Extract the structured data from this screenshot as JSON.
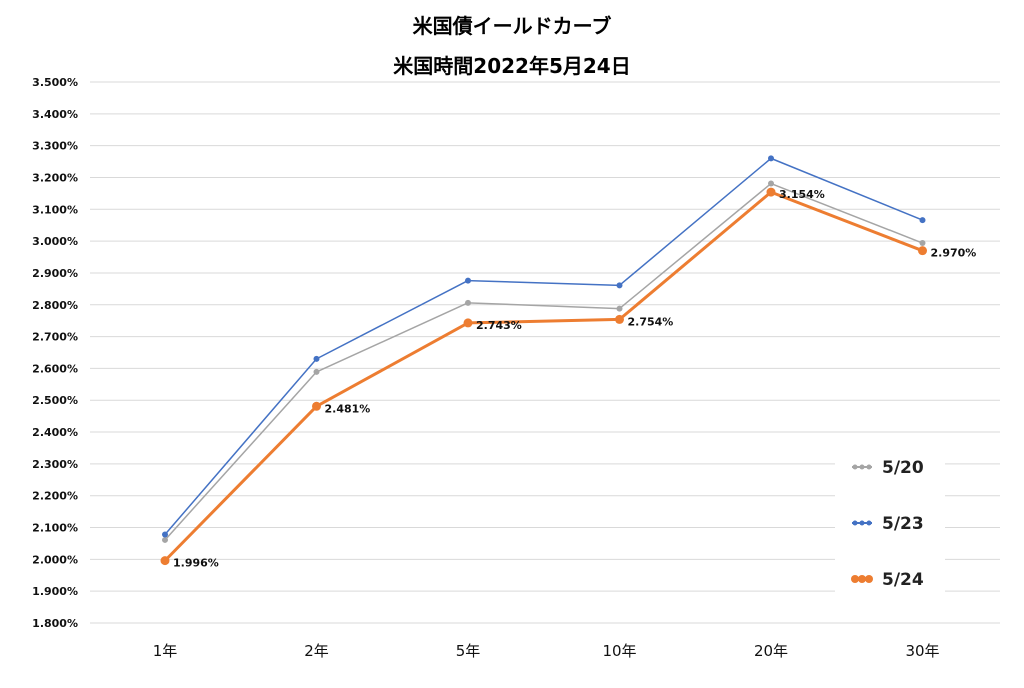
{
  "chart_data": {
    "type": "line",
    "title": "米国債イールドカーブ",
    "subtitle": "米国時間2022年5月24日",
    "categories": [
      "1年",
      "2年",
      "5年",
      "10年",
      "20年",
      "30年"
    ],
    "series": [
      {
        "name": "5/20",
        "color": "#a5a5a5",
        "values": [
          2.061,
          2.589,
          2.806,
          2.788,
          3.181,
          2.994
        ]
      },
      {
        "name": "5/23",
        "color": "#4472c4",
        "values": [
          2.078,
          2.63,
          2.876,
          2.861,
          3.26,
          3.066
        ]
      },
      {
        "name": "5/24",
        "color": "#ed7d31",
        "values": [
          1.996,
          2.481,
          2.743,
          2.754,
          3.154,
          2.97
        ],
        "labels": [
          "1.996%",
          "2.481%",
          "2.743%",
          "2.754%",
          "3.154%",
          "2.970%"
        ]
      }
    ],
    "yticks": [
      "1.800%",
      "1.900%",
      "2.000%",
      "2.100%",
      "2.200%",
      "2.300%",
      "2.400%",
      "2.500%",
      "2.600%",
      "2.700%",
      "2.800%",
      "2.900%",
      "3.000%",
      "3.100%",
      "3.200%",
      "3.300%",
      "3.400%",
      "3.500%"
    ],
    "ylim": [
      1.8,
      3.5
    ],
    "grid": true,
    "legend": "right"
  }
}
